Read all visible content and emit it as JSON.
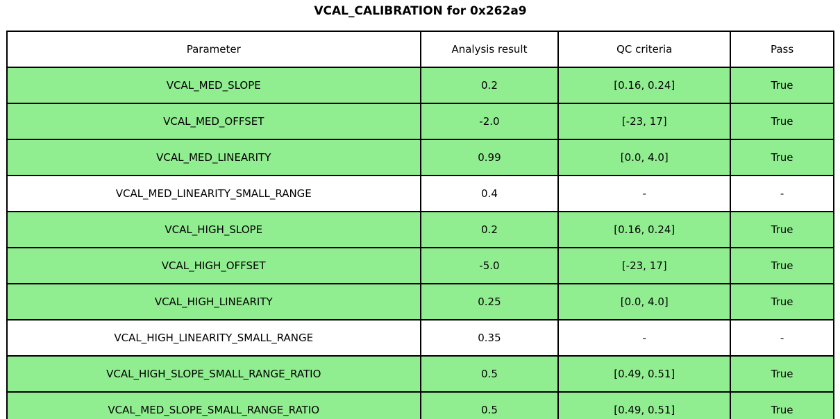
{
  "title": "VCAL_CALIBRATION for 0x262a9",
  "colors": {
    "pass_row_green": "#90EE90",
    "neutral_row_white": "#ffffff",
    "border": "#000000"
  },
  "chart_data": {
    "type": "table",
    "title": "VCAL_CALIBRATION for 0x262a9",
    "columns": [
      "Parameter",
      "Analysis result",
      "QC criteria",
      "Pass"
    ],
    "rows": [
      {
        "parameter": "VCAL_MED_SLOPE",
        "result": "0.2",
        "criteria": "[0.16, 0.24]",
        "pass": "True",
        "highlight": true
      },
      {
        "parameter": "VCAL_MED_OFFSET",
        "result": "-2.0",
        "criteria": "[-23, 17]",
        "pass": "True",
        "highlight": true
      },
      {
        "parameter": "VCAL_MED_LINEARITY",
        "result": "0.99",
        "criteria": "[0.0, 4.0]",
        "pass": "True",
        "highlight": true
      },
      {
        "parameter": "VCAL_MED_LINEARITY_SMALL_RANGE",
        "result": "0.4",
        "criteria": "-",
        "pass": "-",
        "highlight": false
      },
      {
        "parameter": "VCAL_HIGH_SLOPE",
        "result": "0.2",
        "criteria": "[0.16, 0.24]",
        "pass": "True",
        "highlight": true
      },
      {
        "parameter": "VCAL_HIGH_OFFSET",
        "result": "-5.0",
        "criteria": "[-23, 17]",
        "pass": "True",
        "highlight": true
      },
      {
        "parameter": "VCAL_HIGH_LINEARITY",
        "result": "0.25",
        "criteria": "[0.0, 4.0]",
        "pass": "True",
        "highlight": true
      },
      {
        "parameter": "VCAL_HIGH_LINEARITY_SMALL_RANGE",
        "result": "0.35",
        "criteria": "-",
        "pass": "-",
        "highlight": false
      },
      {
        "parameter": "VCAL_HIGH_SLOPE_SMALL_RANGE_RATIO",
        "result": "0.5",
        "criteria": "[0.49, 0.51]",
        "pass": "True",
        "highlight": true
      },
      {
        "parameter": "VCAL_MED_SLOPE_SMALL_RANGE_RATIO",
        "result": "0.5",
        "criteria": "[0.49, 0.51]",
        "pass": "True",
        "highlight": true
      }
    ]
  }
}
